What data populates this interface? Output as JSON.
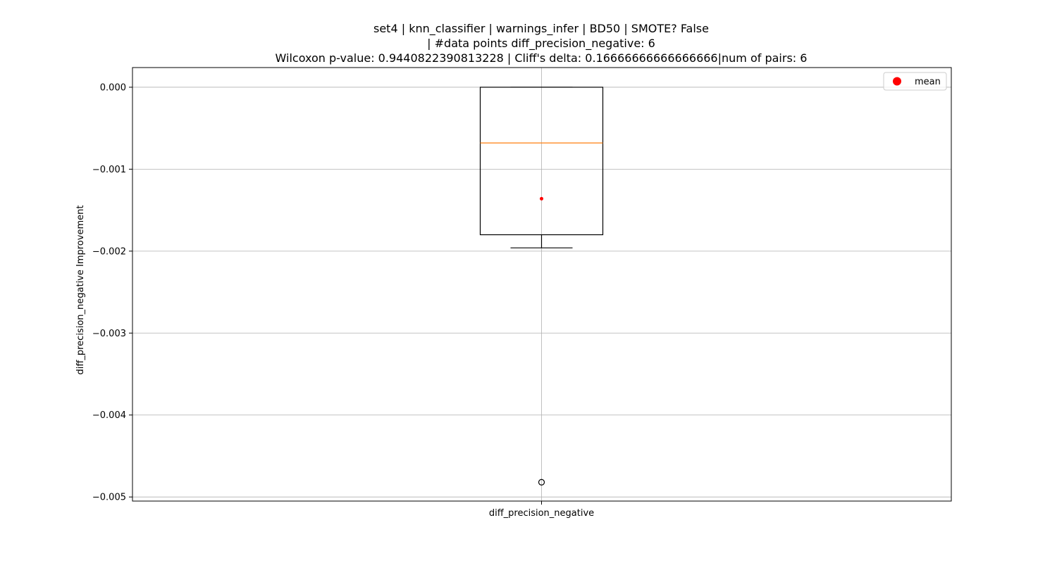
{
  "chart_data": {
    "type": "box",
    "title_lines": [
      "set4 | knn_classifier | warnings_infer | BD50 | SMOTE? False",
      "| #data points diff_precision_negative: 6",
      "Wilcoxon p-value: 0.9440822390813228 | Cliff's delta: 0.16666666666666666|num of pairs: 6"
    ],
    "xlabel": "",
    "ylabel": "diff_precision_negative Improvement",
    "categories": [
      "diff_precision_negative"
    ],
    "ylim": [
      -0.00505,
      0.00024
    ],
    "yticks": [
      0.0,
      -0.001,
      -0.002,
      -0.003,
      -0.004,
      -0.005
    ],
    "ytick_labels": [
      "0.000",
      "−0.001",
      "−0.002",
      "−0.003",
      "−0.004",
      "−0.005"
    ],
    "grid": true,
    "box": {
      "whisker_high": 0.0,
      "q3": 0.0,
      "median": -0.00068,
      "q1": -0.0018,
      "whisker_low": -0.00196,
      "mean": -0.00136,
      "outliers": [
        -0.00482
      ]
    },
    "legend": {
      "placement": "upper-right",
      "entries": [
        {
          "label": "mean",
          "color": "#ff0000"
        }
      ]
    },
    "colors": {
      "box": "#000000",
      "median": "#ff7f0e",
      "mean": "#ff0000",
      "grid": "#b0b0b0"
    }
  }
}
